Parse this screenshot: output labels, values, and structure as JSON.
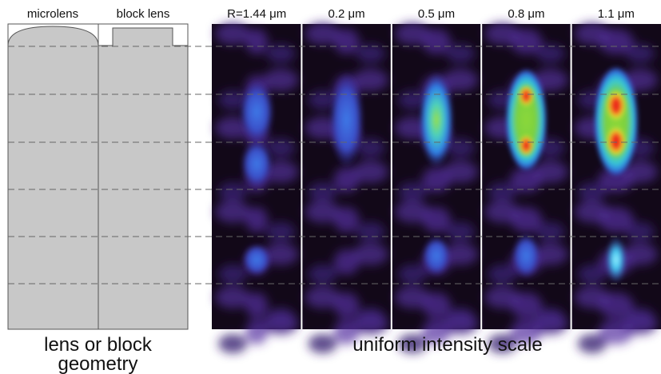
{
  "left_panel": {
    "column_labels": [
      "microlens",
      "block lens"
    ],
    "caption": "lens or block geometry"
  },
  "right_panel": {
    "column_labels": [
      "R=1.44 μm",
      "0.2 μm",
      "0.5 μm",
      "0.8 μm",
      "1.1 μm"
    ],
    "caption": "uniform intensity scale"
  }
}
